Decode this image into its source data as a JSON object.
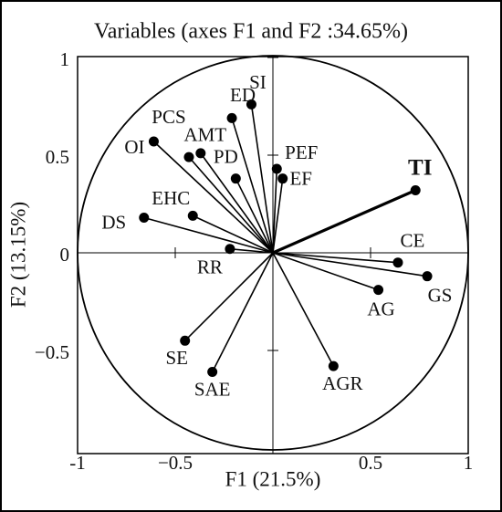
{
  "chart_data": {
    "type": "vector-scatter",
    "title": "Variables (axes F1 and F2 :34.65%)",
    "xlabel": "F1 (21.5%)",
    "ylabel": "F2 (13.15%)",
    "xlim": [
      -1,
      1
    ],
    "ylim": [
      -1,
      1
    ],
    "xticks": [
      -1,
      {
        "value": -0.5,
        "label": "−0.5"
      },
      0.5,
      1
    ],
    "yticks": [
      1,
      0.5,
      0,
      {
        "value": -0.5,
        "label": "−0.5"
      }
    ],
    "circle": true,
    "color": "#000000",
    "points": [
      {
        "label": "SI",
        "x": -0.11,
        "y": 0.76
      },
      {
        "label": "ED",
        "x": -0.21,
        "y": 0.69
      },
      {
        "label": "PCS",
        "x": -0.43,
        "y": 0.49
      },
      {
        "label": "OI",
        "x": -0.61,
        "y": 0.57
      },
      {
        "label": "AMT",
        "x": -0.37,
        "y": 0.51
      },
      {
        "label": "PD",
        "x": -0.19,
        "y": 0.38
      },
      {
        "label": "PEF",
        "x": 0.02,
        "y": 0.43
      },
      {
        "label": "EF",
        "x": 0.05,
        "y": 0.38
      },
      {
        "label": "TI",
        "x": 0.73,
        "y": 0.32,
        "emphasized": true
      },
      {
        "label": "DS",
        "x": -0.66,
        "y": 0.18
      },
      {
        "label": "EHC",
        "x": -0.41,
        "y": 0.19
      },
      {
        "label": "RR",
        "x": -0.22,
        "y": 0.02
      },
      {
        "label": "CE",
        "x": 0.64,
        "y": -0.05
      },
      {
        "label": "GS",
        "x": 0.79,
        "y": -0.12
      },
      {
        "label": "AG",
        "x": 0.54,
        "y": -0.19
      },
      {
        "label": "SE",
        "x": -0.45,
        "y": -0.45
      },
      {
        "label": "SAE",
        "x": -0.31,
        "y": -0.61
      },
      {
        "label": "AGR",
        "x": 0.31,
        "y": -0.58
      }
    ]
  }
}
